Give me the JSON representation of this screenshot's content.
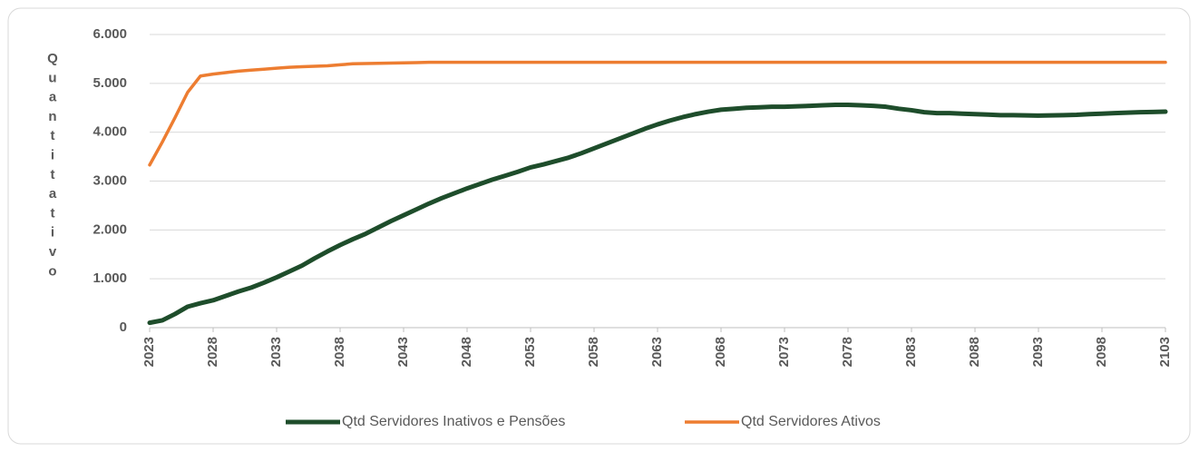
{
  "chart_data": {
    "type": "line",
    "y_label": "Quantitativo",
    "x": [
      2023,
      2024,
      2025,
      2026,
      2027,
      2028,
      2029,
      2030,
      2031,
      2032,
      2033,
      2034,
      2035,
      2036,
      2037,
      2038,
      2039,
      2040,
      2041,
      2042,
      2043,
      2044,
      2045,
      2046,
      2047,
      2048,
      2049,
      2050,
      2051,
      2052,
      2053,
      2054,
      2055,
      2056,
      2057,
      2058,
      2059,
      2060,
      2061,
      2062,
      2063,
      2064,
      2065,
      2066,
      2067,
      2068,
      2069,
      2070,
      2071,
      2072,
      2073,
      2074,
      2075,
      2076,
      2077,
      2078,
      2079,
      2080,
      2081,
      2082,
      2083,
      2084,
      2085,
      2086,
      2087,
      2088,
      2089,
      2090,
      2091,
      2092,
      2093,
      2094,
      2095,
      2096,
      2097,
      2098,
      2099,
      2100,
      2101,
      2102,
      2103
    ],
    "xlim": [
      2023,
      2103
    ],
    "xticks": [
      2023,
      2028,
      2033,
      2038,
      2043,
      2048,
      2053,
      2058,
      2063,
      2068,
      2073,
      2078,
      2083,
      2088,
      2093,
      2098,
      2103
    ],
    "ylim": [
      0,
      6000
    ],
    "yticks": [
      0,
      {
        "value": 1000,
        "label": "1.000"
      },
      {
        "value": 2000,
        "label": "2.000"
      },
      {
        "value": 3000,
        "label": "3.000"
      },
      {
        "value": 4000,
        "label": "4.000"
      },
      {
        "value": 5000,
        "label": "5.000"
      },
      {
        "value": 6000,
        "label": "6.000"
      }
    ],
    "grid": true,
    "legend": "bottom",
    "series": [
      {
        "name": "Qtd Servidores Inativos e Pensões",
        "color": "#1e4d2b",
        "width": 5,
        "values": [
          100,
          150,
          280,
          430,
          500,
          560,
          650,
          740,
          820,
          920,
          1030,
          1150,
          1270,
          1420,
          1560,
          1690,
          1810,
          1920,
          2050,
          2180,
          2300,
          2420,
          2540,
          2650,
          2750,
          2850,
          2940,
          3030,
          3110,
          3190,
          3280,
          3340,
          3410,
          3480,
          3570,
          3670,
          3770,
          3870,
          3970,
          4070,
          4160,
          4240,
          4310,
          4370,
          4420,
          4460,
          4480,
          4500,
          4510,
          4520,
          4520,
          4530,
          4540,
          4550,
          4560,
          4560,
          4550,
          4540,
          4520,
          4480,
          4450,
          4410,
          4390,
          4390,
          4380,
          4370,
          4360,
          4350,
          4350,
          4345,
          4340,
          4345,
          4350,
          4355,
          4370,
          4380,
          4390,
          4400,
          4410,
          4415,
          4420
        ]
      },
      {
        "name": "Qtd Servidores Ativos",
        "color": "#ed7d31",
        "width": 3.5,
        "values": [
          3330,
          3800,
          4300,
          4820,
          5150,
          5190,
          5220,
          5250,
          5270,
          5290,
          5310,
          5330,
          5340,
          5350,
          5360,
          5380,
          5400,
          5405,
          5410,
          5415,
          5420,
          5425,
          5430,
          5430,
          5430,
          5430,
          5430,
          5430,
          5430,
          5430,
          5430,
          5430,
          5430,
          5430,
          5430,
          5430,
          5430,
          5430,
          5430,
          5430,
          5430,
          5430,
          5430,
          5430,
          5430,
          5430,
          5430,
          5430,
          5430,
          5430,
          5430,
          5430,
          5430,
          5430,
          5430,
          5430,
          5430,
          5430,
          5430,
          5430,
          5430,
          5430,
          5430,
          5430,
          5430,
          5430,
          5430,
          5430,
          5430,
          5430,
          5430,
          5430,
          5430,
          5430,
          5430,
          5430,
          5430,
          5430,
          5430,
          5430,
          5430
        ]
      }
    ]
  }
}
